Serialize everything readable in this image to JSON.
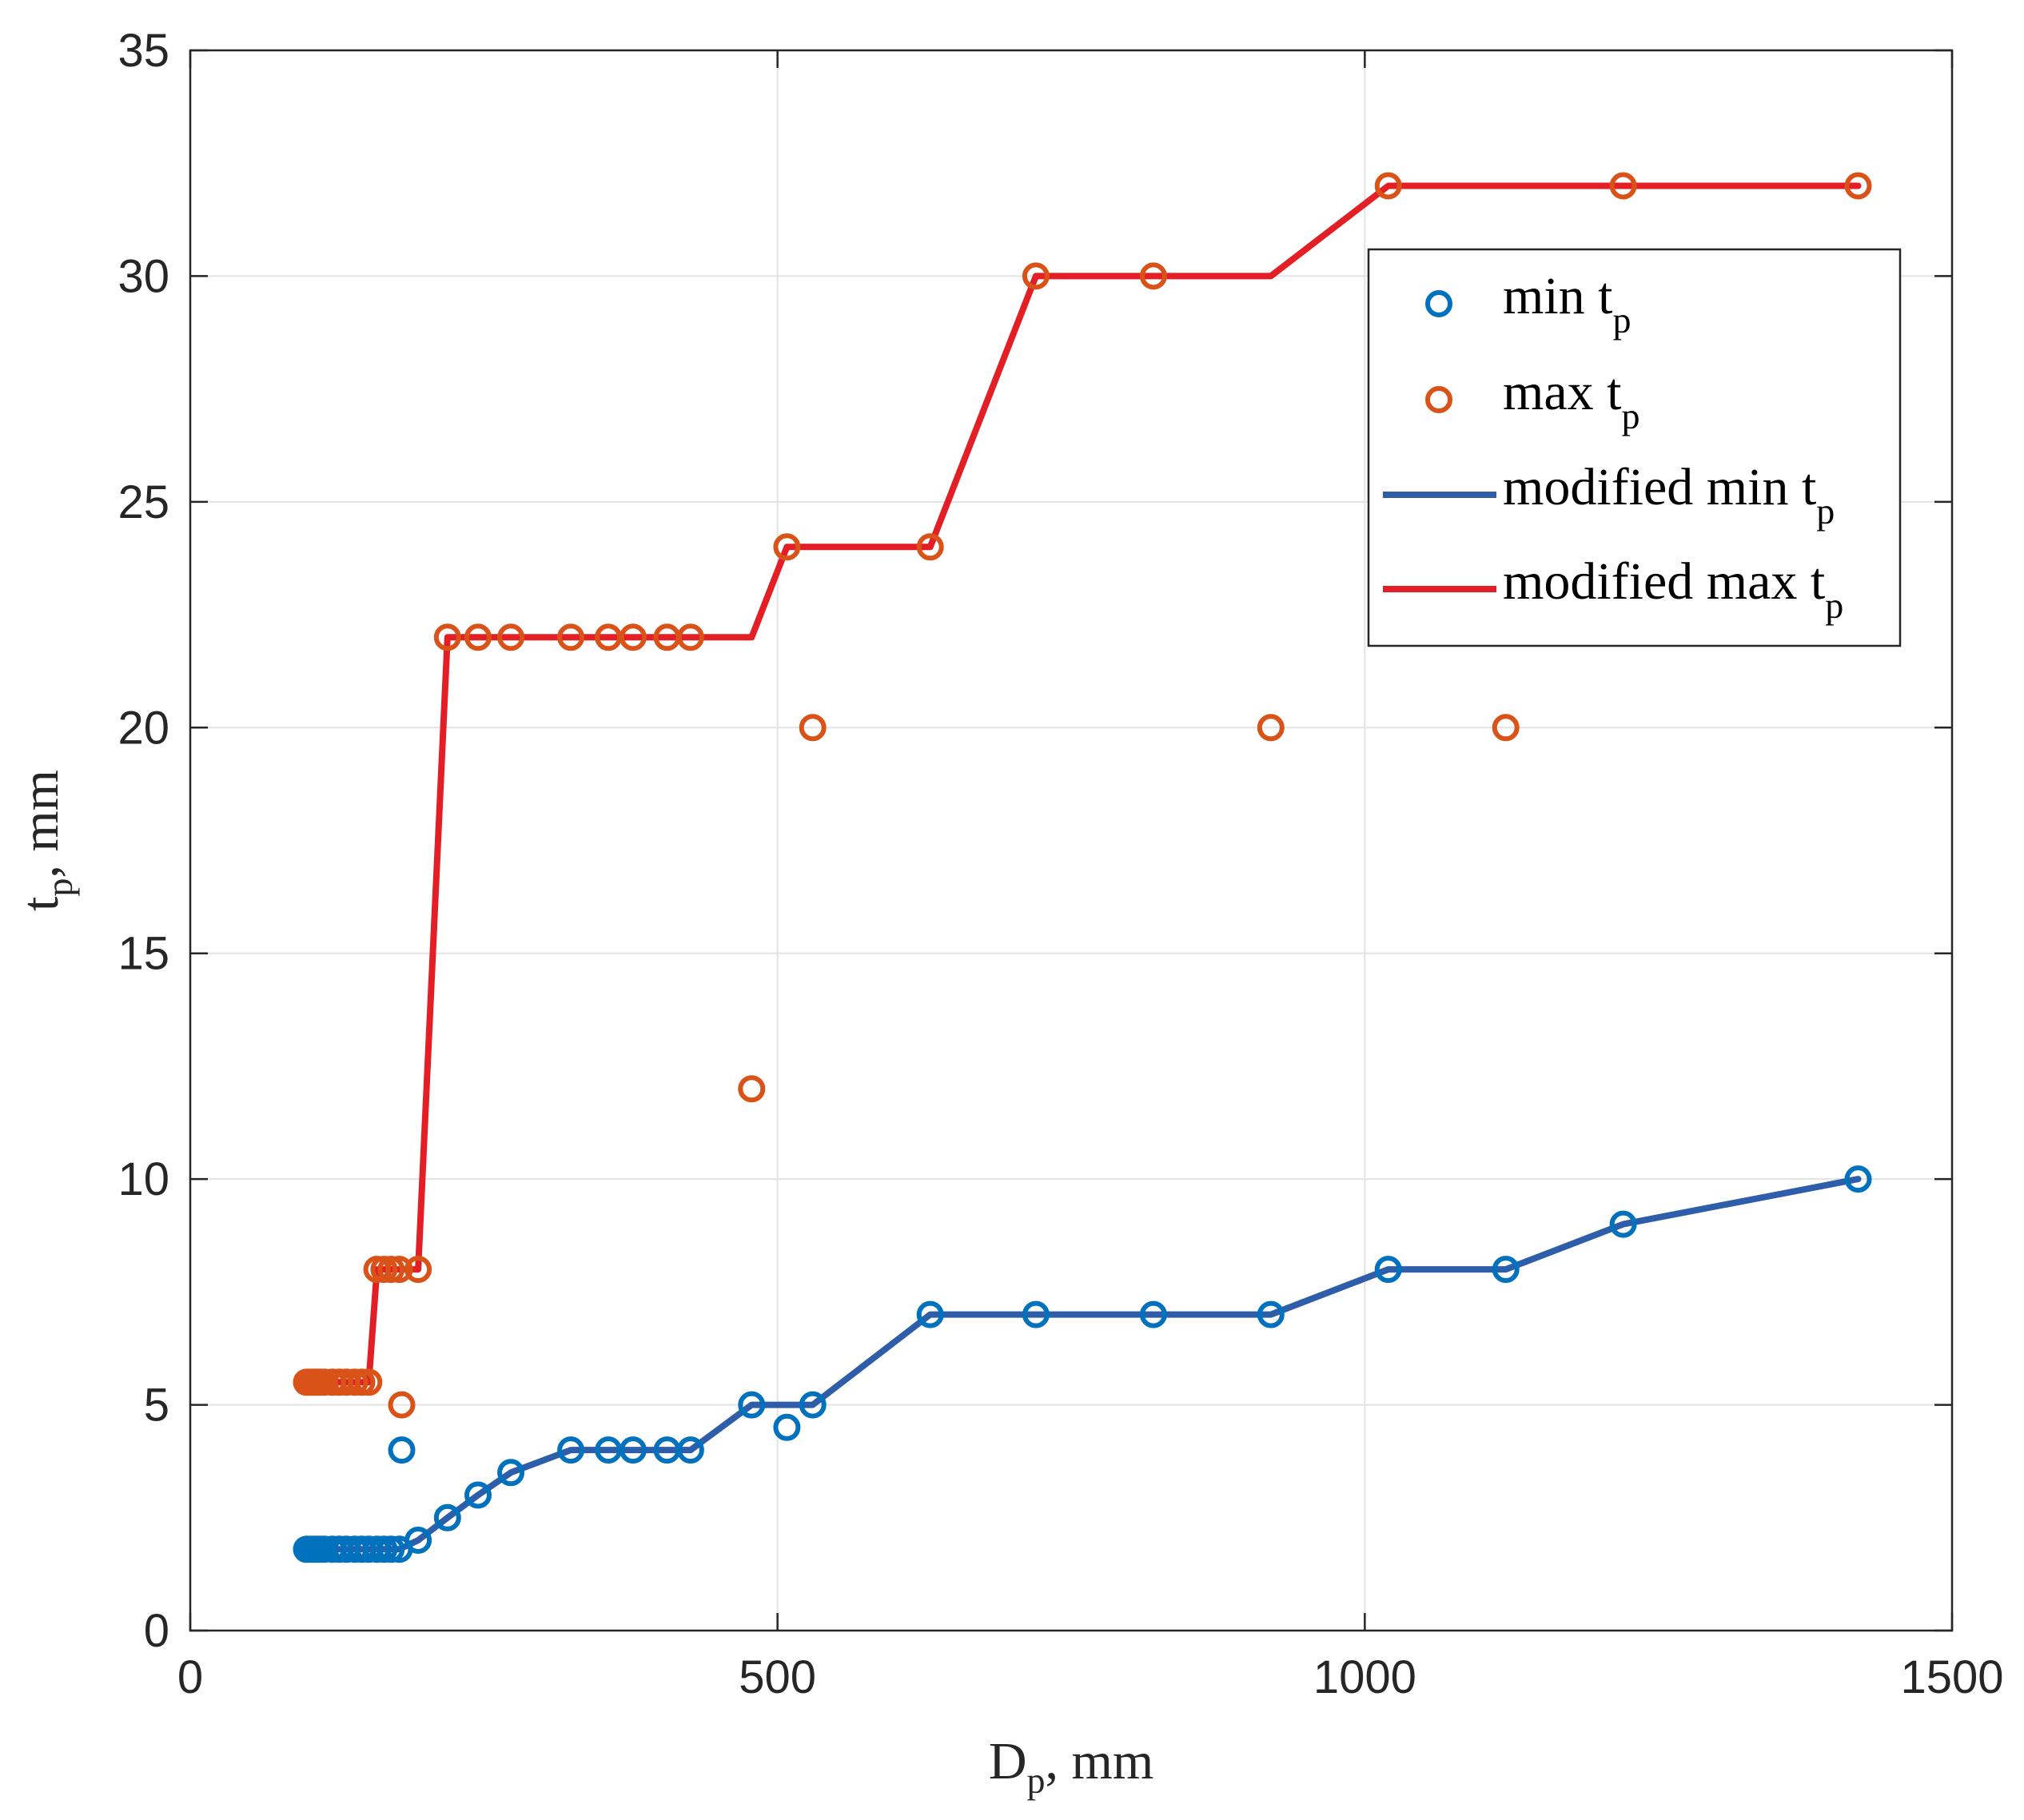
{
  "chart_data": {
    "type": "scatter",
    "title": "",
    "xlabel": {
      "main": "D",
      "sub": "p",
      "rest": ", mm"
    },
    "ylabel": {
      "main": "t",
      "sub": "p",
      "rest": ", mm"
    },
    "xlim": [
      0,
      1500
    ],
    "ylim": [
      0,
      35
    ],
    "xticks": [
      0,
      500,
      1000,
      1500
    ],
    "yticks": [
      0,
      5,
      10,
      15,
      20,
      25,
      30,
      35
    ],
    "grid": true,
    "legend_position": "top-right",
    "series": [
      {
        "name": "min t_p",
        "label": {
          "main": "min t",
          "sub": "p"
        },
        "kind": "markers",
        "color": "#0072BD",
        "x": [
          99,
          102,
          105,
          108,
          111,
          114,
          121,
          127,
          133,
          140,
          146,
          152,
          159,
          165,
          171,
          178,
          180,
          194,
          219,
          245,
          273,
          324,
          356,
          377,
          406,
          426,
          478,
          508,
          530,
          630,
          720,
          820,
          920,
          1020,
          1120,
          1220,
          1420
        ],
        "y": [
          1.8,
          1.8,
          1.8,
          1.8,
          1.8,
          1.8,
          1.8,
          1.8,
          1.8,
          1.8,
          1.8,
          1.8,
          1.8,
          1.8,
          1.8,
          1.8,
          4,
          2,
          2.5,
          3,
          3.5,
          4,
          4,
          4,
          4,
          4,
          5,
          4.5,
          5,
          7,
          7,
          7,
          7,
          8,
          8,
          9,
          10
        ]
      },
      {
        "name": "max t_p",
        "label": {
          "main": "max t",
          "sub": "p"
        },
        "kind": "markers",
        "color": "#D95319",
        "x": [
          99,
          102,
          105,
          108,
          111,
          114,
          121,
          127,
          133,
          140,
          146,
          152,
          159,
          165,
          171,
          178,
          180,
          194,
          219,
          245,
          273,
          324,
          356,
          377,
          406,
          426,
          478,
          508,
          530,
          630,
          720,
          820,
          920,
          1020,
          1120,
          1220,
          1420
        ],
        "y": [
          5.5,
          5.5,
          5.5,
          5.5,
          5.5,
          5.5,
          5.5,
          5.5,
          5.5,
          5.5,
          5.5,
          5.5,
          8,
          8,
          8,
          8,
          5,
          8,
          22,
          22,
          22,
          22,
          22,
          22,
          22,
          22,
          12,
          24,
          20,
          24,
          30,
          30,
          20,
          32,
          20,
          32,
          32
        ]
      },
      {
        "name": "modified min t_p",
        "label": {
          "main": "modified min t",
          "sub": "p"
        },
        "kind": "line",
        "color": "#2E5EAA",
        "x": [
          102,
          178,
          194,
          219,
          245,
          273,
          324,
          426,
          478,
          530,
          630,
          920,
          1020,
          1120,
          1220,
          1420
        ],
        "y": [
          1.8,
          1.8,
          2,
          2.5,
          3,
          3.5,
          4,
          4,
          5,
          5,
          7,
          7,
          8,
          8,
          9,
          10
        ]
      },
      {
        "name": "modified max t_p",
        "label": {
          "main": "modified max t",
          "sub": "p"
        },
        "kind": "line",
        "color": "#E41E25",
        "x": [
          102,
          152,
          159,
          194,
          219,
          478,
          508,
          630,
          720,
          920,
          1020,
          1420
        ],
        "y": [
          5.5,
          5.5,
          8,
          8,
          22,
          22,
          24,
          24,
          30,
          30,
          32,
          32
        ]
      }
    ]
  }
}
